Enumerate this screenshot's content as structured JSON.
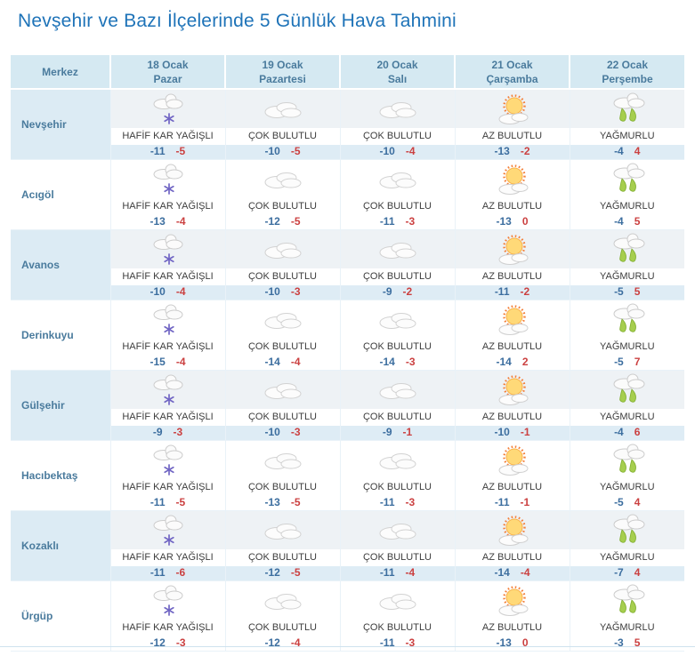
{
  "title": "Nevşehir ve Bazı İlçelerinde 5 Günlük Hava Tahmini",
  "colors": {
    "title_blue": "#1e73b8",
    "header_bg": "#d5e9f2",
    "header_text": "#4a7b9d",
    "min_temp_blue": "#3c6e9f",
    "max_temp_red": "#cb4040",
    "snowflake_purple": "#7166c4",
    "rain_drop_green": "#a6ce4e"
  },
  "table": {
    "merkez_header": "Merkez",
    "day_headers": [
      {
        "date": "18 Ocak",
        "day": "Pazar"
      },
      {
        "date": "19 Ocak",
        "day": "Pazartesi"
      },
      {
        "date": "20 Ocak",
        "day": "Salı"
      },
      {
        "date": "21 Ocak",
        "day": "Çarşamba"
      },
      {
        "date": "22 Ocak",
        "day": "Perşembe"
      }
    ],
    "rows": [
      {
        "city": "Nevşehir",
        "days": [
          {
            "icon": "light-snow-icon",
            "condition": "HAFİF KAR YAĞIŞLI",
            "min": "-11",
            "max": "-5"
          },
          {
            "icon": "cloudy-icon",
            "condition": "ÇOK BULUTLU",
            "min": "-10",
            "max": "-5"
          },
          {
            "icon": "cloudy-icon",
            "condition": "ÇOK BULUTLU",
            "min": "-10",
            "max": "-4"
          },
          {
            "icon": "partly-cloudy-icon",
            "condition": "AZ BULUTLU",
            "min": "-13",
            "max": "-2"
          },
          {
            "icon": "rainy-icon",
            "condition": "YAĞMURLU",
            "min": "-4",
            "max": "4"
          }
        ]
      },
      {
        "city": "Acıgöl",
        "days": [
          {
            "icon": "light-snow-icon",
            "condition": "HAFİF KAR YAĞIŞLI",
            "min": "-13",
            "max": "-4"
          },
          {
            "icon": "cloudy-icon",
            "condition": "ÇOK BULUTLU",
            "min": "-12",
            "max": "-5"
          },
          {
            "icon": "cloudy-icon",
            "condition": "ÇOK BULUTLU",
            "min": "-11",
            "max": "-3"
          },
          {
            "icon": "partly-cloudy-icon",
            "condition": "AZ BULUTLU",
            "min": "-13",
            "max": "0"
          },
          {
            "icon": "rainy-icon",
            "condition": "YAĞMURLU",
            "min": "-4",
            "max": "5"
          }
        ]
      },
      {
        "city": "Avanos",
        "days": [
          {
            "icon": "light-snow-icon",
            "condition": "HAFİF KAR YAĞIŞLI",
            "min": "-10",
            "max": "-4"
          },
          {
            "icon": "cloudy-icon",
            "condition": "ÇOK BULUTLU",
            "min": "-10",
            "max": "-3"
          },
          {
            "icon": "cloudy-icon",
            "condition": "ÇOK BULUTLU",
            "min": "-9",
            "max": "-2"
          },
          {
            "icon": "partly-cloudy-icon",
            "condition": "AZ BULUTLU",
            "min": "-11",
            "max": "-2"
          },
          {
            "icon": "rainy-icon",
            "condition": "YAĞMURLU",
            "min": "-5",
            "max": "5"
          }
        ]
      },
      {
        "city": "Derinkuyu",
        "days": [
          {
            "icon": "light-snow-icon",
            "condition": "HAFİF KAR YAĞIŞLI",
            "min": "-15",
            "max": "-4"
          },
          {
            "icon": "cloudy-icon",
            "condition": "ÇOK BULUTLU",
            "min": "-14",
            "max": "-4"
          },
          {
            "icon": "cloudy-icon",
            "condition": "ÇOK BULUTLU",
            "min": "-14",
            "max": "-3"
          },
          {
            "icon": "partly-cloudy-icon",
            "condition": "AZ BULUTLU",
            "min": "-14",
            "max": "2"
          },
          {
            "icon": "rainy-icon",
            "condition": "YAĞMURLU",
            "min": "-5",
            "max": "7"
          }
        ]
      },
      {
        "city": "Gülşehir",
        "days": [
          {
            "icon": "light-snow-icon",
            "condition": "HAFİF KAR YAĞIŞLI",
            "min": "-9",
            "max": "-3"
          },
          {
            "icon": "cloudy-icon",
            "condition": "ÇOK BULUTLU",
            "min": "-10",
            "max": "-3"
          },
          {
            "icon": "cloudy-icon",
            "condition": "ÇOK BULUTLU",
            "min": "-9",
            "max": "-1"
          },
          {
            "icon": "partly-cloudy-icon",
            "condition": "AZ BULUTLU",
            "min": "-10",
            "max": "-1"
          },
          {
            "icon": "rainy-icon",
            "condition": "YAĞMURLU",
            "min": "-4",
            "max": "6"
          }
        ]
      },
      {
        "city": "Hacıbektaş",
        "days": [
          {
            "icon": "light-snow-icon",
            "condition": "HAFİF KAR YAĞIŞLI",
            "min": "-11",
            "max": "-5"
          },
          {
            "icon": "cloudy-icon",
            "condition": "ÇOK BULUTLU",
            "min": "-13",
            "max": "-5"
          },
          {
            "icon": "cloudy-icon",
            "condition": "ÇOK BULUTLU",
            "min": "-11",
            "max": "-3"
          },
          {
            "icon": "partly-cloudy-icon",
            "condition": "AZ BULUTLU",
            "min": "-11",
            "max": "-1"
          },
          {
            "icon": "rainy-icon",
            "condition": "YAĞMURLU",
            "min": "-5",
            "max": "4"
          }
        ]
      },
      {
        "city": "Kozaklı",
        "days": [
          {
            "icon": "light-snow-icon",
            "condition": "HAFİF KAR YAĞIŞLI",
            "min": "-11",
            "max": "-6"
          },
          {
            "icon": "cloudy-icon",
            "condition": "ÇOK BULUTLU",
            "min": "-12",
            "max": "-5"
          },
          {
            "icon": "cloudy-icon",
            "condition": "ÇOK BULUTLU",
            "min": "-11",
            "max": "-4"
          },
          {
            "icon": "partly-cloudy-icon",
            "condition": "AZ BULUTLU",
            "min": "-14",
            "max": "-4"
          },
          {
            "icon": "rainy-icon",
            "condition": "YAĞMURLU",
            "min": "-7",
            "max": "4"
          }
        ]
      },
      {
        "city": "Ürgüp",
        "days": [
          {
            "icon": "light-snow-icon",
            "condition": "HAFİF KAR YAĞIŞLI",
            "min": "-12",
            "max": "-3"
          },
          {
            "icon": "cloudy-icon",
            "condition": "ÇOK BULUTLU",
            "min": "-12",
            "max": "-4"
          },
          {
            "icon": "cloudy-icon",
            "condition": "ÇOK BULUTLU",
            "min": "-11",
            "max": "-3"
          },
          {
            "icon": "partly-cloudy-icon",
            "condition": "AZ BULUTLU",
            "min": "-13",
            "max": "0"
          },
          {
            "icon": "rainy-icon",
            "condition": "YAĞMURLU",
            "min": "-3",
            "max": "5"
          }
        ]
      }
    ]
  }
}
